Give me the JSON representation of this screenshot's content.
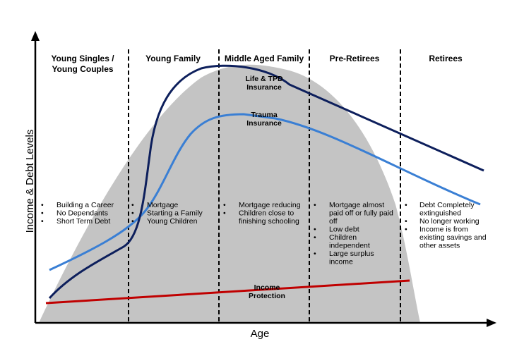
{
  "axes": {
    "x_label": "Age",
    "y_label": "Income & Debt Levels"
  },
  "stages": [
    {
      "title_lines": [
        "Young Singles  /",
        "Young Couples"
      ]
    },
    {
      "title_lines": [
        "Young Family"
      ]
    },
    {
      "title_lines": [
        "Middle Aged Family"
      ]
    },
    {
      "title_lines": [
        "Pre-Retirees"
      ]
    },
    {
      "title_lines": [
        "Retirees"
      ]
    }
  ],
  "curves": {
    "life_tpd": {
      "label_lines": [
        "Life & TPD",
        "Insurance"
      ],
      "color": "#0d1f5c"
    },
    "trauma": {
      "label_lines": [
        "Trauma",
        "Insurance"
      ],
      "color": "#3a7fd4"
    },
    "income_protection": {
      "label_lines": [
        "Income",
        "Protection"
      ],
      "color": "#c00000"
    },
    "debt_area": {
      "color": "#c4c4c4"
    }
  },
  "notes": [
    {
      "bullets": [
        [
          "Building a Career"
        ],
        [
          "No Dependants"
        ],
        [
          "Short Term Debt"
        ]
      ]
    },
    {
      "bullets": [
        [
          "Mortgage"
        ],
        [
          "Starting a Family"
        ],
        [
          "Young Children"
        ]
      ]
    },
    {
      "bullets": [
        [
          "Mortgage reducing"
        ],
        [
          "Children close to",
          "finishing schooling"
        ]
      ]
    },
    {
      "bullets": [
        [
          "Mortgage almost",
          "paid off or fully paid",
          "off"
        ],
        [
          "Low debt"
        ],
        [
          "Children",
          "independent"
        ],
        [
          "Large surplus",
          "income"
        ]
      ]
    },
    {
      "bullets": [
        [
          "Debt Completely",
          "extinguished"
        ],
        [
          "No longer working"
        ],
        [
          "Income is from",
          "existing savings and",
          "other assets"
        ]
      ]
    }
  ]
}
